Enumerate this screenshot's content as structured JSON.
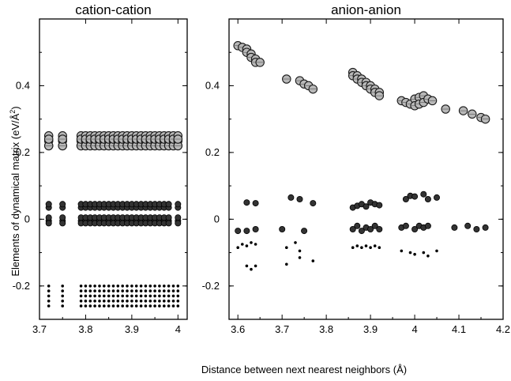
{
  "figure": {
    "ylabel_main": "Elements of dynamical matrix (eV/Å",
    "ylabel_sup": "2",
    "ylabel_end": ")",
    "xlabel": "Distance between next nearest neighbors (Å)"
  },
  "chart_data": [
    {
      "type": "scatter",
      "title": "cation-cation",
      "xlim": [
        3.7,
        4.02
      ],
      "ylim": [
        -0.3,
        0.6
      ],
      "xticks": [
        "3.7",
        "3.8",
        "3.9",
        "4"
      ],
      "yticks": [
        "-0.2",
        "0",
        "0.2",
        "0.4"
      ],
      "xtick_values": [
        3.7,
        3.8,
        3.9,
        4.0
      ],
      "ytick_values": [
        -0.2,
        0,
        0.2,
        0.4
      ],
      "series": [
        {
          "marker": "large",
          "x_values": [
            3.72,
            3.75,
            3.79,
            3.8,
            3.81,
            3.82,
            3.83,
            3.84,
            3.85,
            3.86,
            3.87,
            3.88,
            3.89,
            3.9,
            3.91,
            3.92,
            3.93,
            3.94,
            3.95,
            3.96,
            3.97,
            3.98,
            3.99,
            4.0
          ],
          "bands": [
            [
              0.22,
              0.235,
              0.25
            ],
            [
              0.22,
              0.24
            ]
          ]
        },
        {
          "marker": "medium",
          "x_values": [
            3.72,
            3.75,
            3.79,
            3.8,
            3.81,
            3.82,
            3.83,
            3.84,
            3.85,
            3.86,
            3.87,
            3.88,
            3.89,
            3.9,
            3.91,
            3.92,
            3.93,
            3.94,
            3.95,
            3.96,
            3.97,
            3.98,
            4.0
          ],
          "bands": [
            [
              0.035,
              0.045
            ],
            [
              -0.005,
              0.005,
              -0.012
            ]
          ]
        },
        {
          "marker": "small",
          "x_values": [
            3.72,
            3.75,
            3.79,
            3.8,
            3.81,
            3.82,
            3.83,
            3.84,
            3.85,
            3.86,
            3.87,
            3.88,
            3.89,
            3.9,
            3.91,
            3.92,
            3.93,
            3.94,
            3.95,
            3.96,
            3.97,
            3.98,
            3.99,
            4.0
          ],
          "bands": [
            [
              -0.2,
              -0.215,
              -0.23,
              -0.245,
              -0.26
            ]
          ]
        }
      ]
    },
    {
      "type": "scatter",
      "title": "anion-anion",
      "xlim": [
        3.58,
        4.2
      ],
      "ylim": [
        -0.3,
        0.6
      ],
      "xticks": [
        "3.6",
        "3.7",
        "3.8",
        "3.9",
        "4",
        "4.1",
        "4.2"
      ],
      "yticks": [
        "-0.2",
        "0",
        "0.2",
        "0.4"
      ],
      "xtick_values": [
        3.6,
        3.7,
        3.8,
        3.9,
        4.0,
        4.1,
        4.2
      ],
      "ytick_values": [
        -0.2,
        0,
        0.2,
        0.4
      ],
      "series": [
        {
          "marker": "large",
          "points": [
            [
              3.6,
              0.52
            ],
            [
              3.61,
              0.515
            ],
            [
              3.62,
              0.51
            ],
            [
              3.62,
              0.5
            ],
            [
              3.63,
              0.495
            ],
            [
              3.63,
              0.485
            ],
            [
              3.64,
              0.48
            ],
            [
              3.64,
              0.47
            ],
            [
              3.65,
              0.47
            ],
            [
              3.71,
              0.42
            ],
            [
              3.74,
              0.415
            ],
            [
              3.75,
              0.405
            ],
            [
              3.76,
              0.4
            ],
            [
              3.77,
              0.39
            ],
            [
              3.86,
              0.44
            ],
            [
              3.86,
              0.43
            ],
            [
              3.87,
              0.43
            ],
            [
              3.87,
              0.42
            ],
            [
              3.88,
              0.42
            ],
            [
              3.88,
              0.41
            ],
            [
              3.89,
              0.41
            ],
            [
              3.89,
              0.4
            ],
            [
              3.9,
              0.4
            ],
            [
              3.9,
              0.39
            ],
            [
              3.91,
              0.39
            ],
            [
              3.91,
              0.38
            ],
            [
              3.92,
              0.38
            ],
            [
              3.92,
              0.37
            ],
            [
              3.97,
              0.355
            ],
            [
              3.98,
              0.35
            ],
            [
              3.99,
              0.345
            ],
            [
              4.0,
              0.36
            ],
            [
              4.0,
              0.34
            ],
            [
              4.01,
              0.365
            ],
            [
              4.01,
              0.345
            ],
            [
              4.02,
              0.37
            ],
            [
              4.02,
              0.35
            ],
            [
              4.03,
              0.36
            ],
            [
              4.04,
              0.355
            ],
            [
              4.07,
              0.33
            ],
            [
              4.11,
              0.325
            ],
            [
              4.13,
              0.315
            ],
            [
              4.15,
              0.305
            ],
            [
              4.16,
              0.3
            ]
          ]
        },
        {
          "marker": "medium",
          "points": [
            [
              3.62,
              0.05
            ],
            [
              3.64,
              0.048
            ],
            [
              3.72,
              0.065
            ],
            [
              3.74,
              0.06
            ],
            [
              3.77,
              0.048
            ],
            [
              3.86,
              0.035
            ],
            [
              3.87,
              0.04
            ],
            [
              3.88,
              0.045
            ],
            [
              3.89,
              0.038
            ],
            [
              3.9,
              0.05
            ],
            [
              3.91,
              0.045
            ],
            [
              3.92,
              0.042
            ],
            [
              3.98,
              0.06
            ],
            [
              3.99,
              0.07
            ],
            [
              4.0,
              0.068
            ],
            [
              4.02,
              0.075
            ],
            [
              4.03,
              0.06
            ],
            [
              4.05,
              0.065
            ],
            [
              3.6,
              -0.035
            ],
            [
              3.62,
              -0.035
            ],
            [
              3.64,
              -0.03
            ],
            [
              3.7,
              -0.03
            ],
            [
              3.75,
              -0.035
            ],
            [
              3.86,
              -0.03
            ],
            [
              3.87,
              -0.02
            ],
            [
              3.88,
              -0.035
            ],
            [
              3.89,
              -0.025
            ],
            [
              3.9,
              -0.03
            ],
            [
              3.91,
              -0.02
            ],
            [
              3.92,
              -0.03
            ],
            [
              3.97,
              -0.025
            ],
            [
              3.98,
              -0.02
            ],
            [
              4.0,
              -0.03
            ],
            [
              4.01,
              -0.02
            ],
            [
              4.02,
              -0.025
            ],
            [
              4.03,
              -0.02
            ],
            [
              4.09,
              -0.025
            ],
            [
              4.12,
              -0.02
            ],
            [
              4.14,
              -0.03
            ],
            [
              4.16,
              -0.025
            ]
          ]
        },
        {
          "marker": "small",
          "points": [
            [
              3.6,
              -0.085
            ],
            [
              3.61,
              -0.075
            ],
            [
              3.62,
              -0.08
            ],
            [
              3.63,
              -0.07
            ],
            [
              3.64,
              -0.075
            ],
            [
              3.62,
              -0.14
            ],
            [
              3.63,
              -0.15
            ],
            [
              3.64,
              -0.14
            ],
            [
              3.71,
              -0.085
            ],
            [
              3.73,
              -0.07
            ],
            [
              3.74,
              -0.095
            ],
            [
              3.71,
              -0.135
            ],
            [
              3.74,
              -0.115
            ],
            [
              3.77,
              -0.125
            ],
            [
              3.86,
              -0.085
            ],
            [
              3.87,
              -0.08
            ],
            [
              3.88,
              -0.085
            ],
            [
              3.89,
              -0.08
            ],
            [
              3.9,
              -0.085
            ],
            [
              3.91,
              -0.08
            ],
            [
              3.92,
              -0.085
            ],
            [
              3.97,
              -0.095
            ],
            [
              3.99,
              -0.1
            ],
            [
              4.0,
              -0.105
            ],
            [
              4.02,
              -0.1
            ],
            [
              4.03,
              -0.11
            ],
            [
              4.05,
              -0.095
            ]
          ]
        }
      ]
    }
  ]
}
